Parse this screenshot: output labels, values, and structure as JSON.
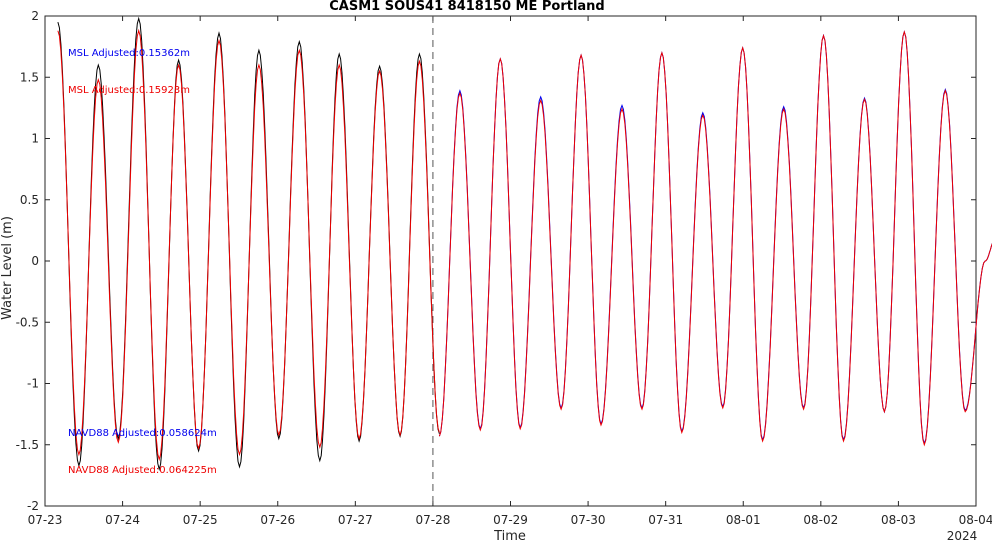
{
  "chart_data": {
    "type": "line",
    "title": "CASM1 SOUS41 8418150 ME Portland",
    "xlabel": "Time",
    "ylabel": "Water Level (m)",
    "ylim": [
      -2,
      2
    ],
    "yticks": [
      "-2",
      "-1.5",
      "-1",
      "-0.5",
      "0",
      "0.5",
      "1",
      "1.5",
      "2"
    ],
    "yticks_values": [
      -2,
      -1.5,
      -1,
      -0.5,
      0,
      0.5,
      1,
      1.5,
      2
    ],
    "xlim": [
      "2024-07-23",
      "2024-08-04"
    ],
    "xticks": [
      "07-23",
      "07-24",
      "07-25",
      "07-26",
      "07-27",
      "07-28",
      "07-29",
      "07-30",
      "07-31",
      "08-01",
      "08-02",
      "08-03",
      "08-04"
    ],
    "x_year_label": "2024",
    "forecast_start_line": "2024-07-28",
    "grid": false,
    "annotations": [
      {
        "text": "MSL Adjusted:0.15362m",
        "color": "#0000ee"
      },
      {
        "text": "MSL Adjusted:0.15923m",
        "color": "#ee0000"
      },
      {
        "text": "NAVD88 Adjusted:0.058624m",
        "color": "#0000ee"
      },
      {
        "text": "NAVD88 Adjusted:0.064225m",
        "color": "#ee0000"
      }
    ],
    "series": [
      {
        "color": "#000000",
        "style": "solid",
        "x": [
          "2024-07-23 04:00",
          "2024-07-23 10:30",
          "2024-07-23 16:30",
          "2024-07-23 22:40",
          "2024-07-24 05:00",
          "2024-07-24 11:20",
          "2024-07-24 17:20",
          "2024-07-24 23:30",
          "2024-07-25 05:50",
          "2024-07-25 12:10",
          "2024-07-25 18:10",
          "2024-07-26 00:20",
          "2024-07-26 06:40",
          "2024-07-26 13:00",
          "2024-07-26 19:00",
          "2024-07-27 01:10",
          "2024-07-27 07:30",
          "2024-07-27 13:50",
          "2024-07-27 19:50",
          "2024-07-28 02:00"
        ],
        "y": [
          1.95,
          -1.67,
          1.6,
          -1.45,
          1.98,
          -1.7,
          1.64,
          -1.55,
          1.86,
          -1.68,
          1.72,
          -1.45,
          1.79,
          -1.63,
          1.69,
          -1.47,
          1.59,
          -1.43,
          1.69,
          -1.41
        ]
      },
      {
        "color": "#ee0000",
        "style": "solid",
        "x": [
          "2024-07-23 04:00",
          "2024-07-23 10:30",
          "2024-07-23 16:30",
          "2024-07-23 22:40",
          "2024-07-24 05:00",
          "2024-07-24 11:20",
          "2024-07-24 17:20",
          "2024-07-24 23:30",
          "2024-07-25 05:50",
          "2024-07-25 12:10",
          "2024-07-25 18:10",
          "2024-07-26 00:20",
          "2024-07-26 06:40",
          "2024-07-26 13:00",
          "2024-07-26 19:00",
          "2024-07-27 01:10",
          "2024-07-27 07:30",
          "2024-07-27 13:50",
          "2024-07-27 19:50",
          "2024-07-28 02:00"
        ],
        "y": [
          1.88,
          -1.58,
          1.48,
          -1.48,
          1.88,
          -1.62,
          1.6,
          -1.53,
          1.8,
          -1.58,
          1.6,
          -1.42,
          1.72,
          -1.52,
          1.6,
          -1.45,
          1.55,
          -1.42,
          1.63,
          -1.4
        ]
      },
      {
        "color": "#0000ee",
        "style": "solid",
        "x": [
          "2024-07-28 02:00",
          "2024-07-28 08:20",
          "2024-07-28 14:40",
          "2024-07-28 20:50",
          "2024-07-29 03:00",
          "2024-07-29 09:20",
          "2024-07-29 15:40",
          "2024-07-29 21:50",
          "2024-07-30 04:00",
          "2024-07-30 10:30",
          "2024-07-30 16:40",
          "2024-07-30 22:50",
          "2024-07-31 05:00",
          "2024-07-31 11:30",
          "2024-07-31 17:40",
          "2024-07-31 23:50",
          "2024-08-01 06:00",
          "2024-08-01 12:30",
          "2024-08-01 18:40",
          "2024-08-02 00:50",
          "2024-08-02 07:00",
          "2024-08-02 13:30",
          "2024-08-02 19:40",
          "2024-08-03 01:50",
          "2024-08-03 08:00",
          "2024-08-03 14:30",
          "2024-08-03 20:40",
          "2024-08-04 02:50",
          "2024-08-04 06:00"
        ],
        "y": [
          -1.43,
          1.39,
          -1.37,
          1.65,
          -1.36,
          1.34,
          -1.2,
          1.68,
          -1.33,
          1.27,
          -1.2,
          1.7,
          -1.39,
          1.21,
          -1.19,
          1.74,
          -1.46,
          1.26,
          -1.2,
          1.84,
          -1.46,
          1.33,
          -1.23,
          1.87,
          -1.49,
          1.4,
          -1.22,
          0.0,
          0.18
        ]
      },
      {
        "color": "#ee0000",
        "style": "solid",
        "x": [
          "2024-07-28 02:00",
          "2024-07-28 08:20",
          "2024-07-28 14:40",
          "2024-07-28 20:50",
          "2024-07-29 03:00",
          "2024-07-29 09:20",
          "2024-07-29 15:40",
          "2024-07-29 21:50",
          "2024-07-30 04:00",
          "2024-07-30 10:30",
          "2024-07-30 16:40",
          "2024-07-30 22:50",
          "2024-07-31 05:00",
          "2024-07-31 11:30",
          "2024-07-31 17:40",
          "2024-07-31 23:50",
          "2024-08-01 06:00",
          "2024-08-01 12:30",
          "2024-08-01 18:40",
          "2024-08-02 00:50",
          "2024-08-02 07:00",
          "2024-08-02 13:30",
          "2024-08-02 19:40",
          "2024-08-03 01:50",
          "2024-08-03 08:00",
          "2024-08-03 14:30",
          "2024-08-03 20:40",
          "2024-08-04 02:50",
          "2024-08-04 06:00"
        ],
        "y": [
          -1.43,
          1.37,
          -1.38,
          1.65,
          -1.37,
          1.31,
          -1.21,
          1.68,
          -1.34,
          1.24,
          -1.21,
          1.7,
          -1.4,
          1.19,
          -1.2,
          1.74,
          -1.47,
          1.24,
          -1.21,
          1.84,
          -1.47,
          1.32,
          -1.23,
          1.87,
          -1.5,
          1.39,
          -1.23,
          0.0,
          0.18
        ]
      }
    ]
  }
}
